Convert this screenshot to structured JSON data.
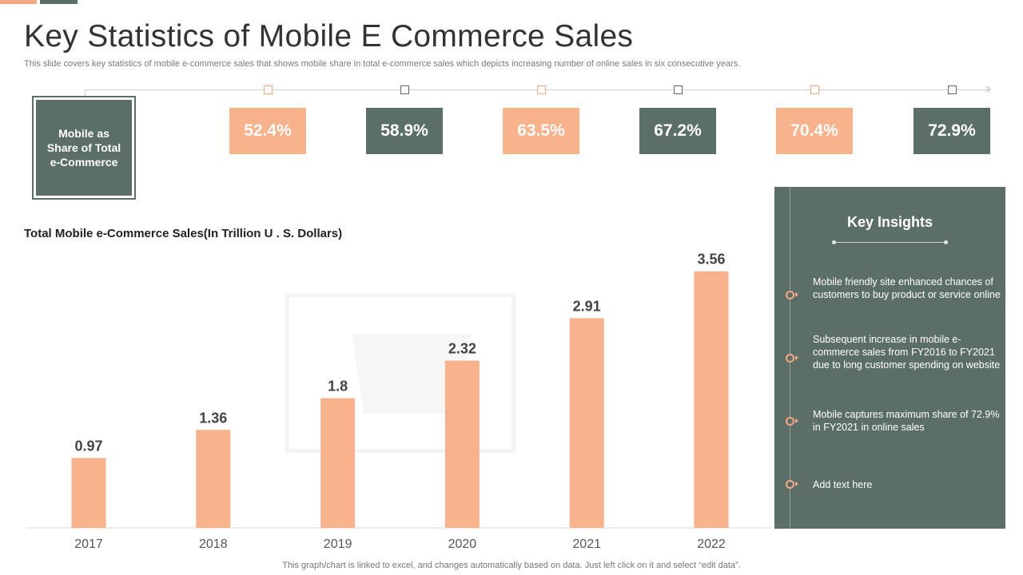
{
  "title": "Key Statistics of Mobile E Commerce Sales",
  "subtitle": "This slide covers key statistics of mobile e-commerce sales that shows mobile share in total e-commerce sales which depicts increasing number of online sales in six consecutive years.",
  "share_label": "Mobile as Share of Total e-Commerce",
  "percentages": [
    "52.4%",
    "58.9%",
    "63.5%",
    "67.2%",
    "70.4%",
    "72.9%"
  ],
  "colors": {
    "accent_orange": "#f8b28c",
    "accent_green": "#5b6f68",
    "bar": "#f8b28c"
  },
  "chart_data": {
    "type": "bar",
    "title": "Total Mobile e-Commerce Sales(In Trillion U . S. Dollars)",
    "categories": [
      "2017",
      "2018",
      "2019",
      "2020",
      "2021",
      "2022"
    ],
    "values": [
      0.97,
      1.36,
      1.8,
      2.32,
      2.91,
      3.56
    ],
    "data_labels": [
      "0.97",
      "1.36",
      "1.8",
      "2.32",
      "2.91",
      "3.56"
    ],
    "xlabel": "",
    "ylabel": "",
    "ylim": [
      0,
      4.0
    ],
    "grid": false,
    "legend": "none"
  },
  "insights": {
    "title": "Key Insights",
    "items": [
      "Mobile friendly site enhanced chances of customers to buy product or service online",
      "Subsequent increase in mobile e-commerce sales from FY2016 to FY2021 due to long customer spending on website",
      "Mobile captures maximum share of 72.9% in FY2021 in online sales",
      "Add text here"
    ]
  },
  "footer": "This graph/chart is linked to excel,  and changes automatically based on data. Just left click on it and select “edit data”."
}
